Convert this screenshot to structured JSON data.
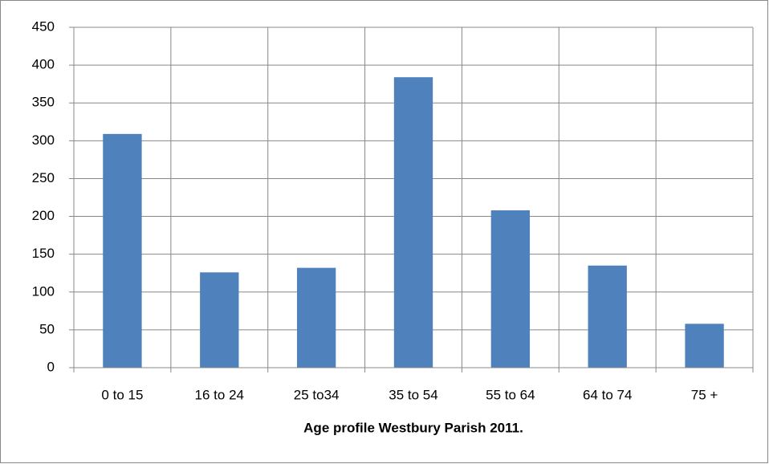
{
  "chart_data": {
    "type": "bar",
    "x_label": "Age profile Westbury Parish 2011.",
    "categories": [
      "0 to 15",
      "16 to 24",
      "25 to34",
      "35 to 54",
      "55 to 64",
      "64 to 74",
      "75 +"
    ],
    "values": [
      309,
      126,
      132,
      384,
      208,
      135,
      58
    ],
    "color": "#4f81bd",
    "ylim": [
      0,
      450
    ],
    "yticks": [
      0,
      50,
      100,
      150,
      200,
      250,
      300,
      350,
      400,
      450
    ],
    "grid": true
  }
}
